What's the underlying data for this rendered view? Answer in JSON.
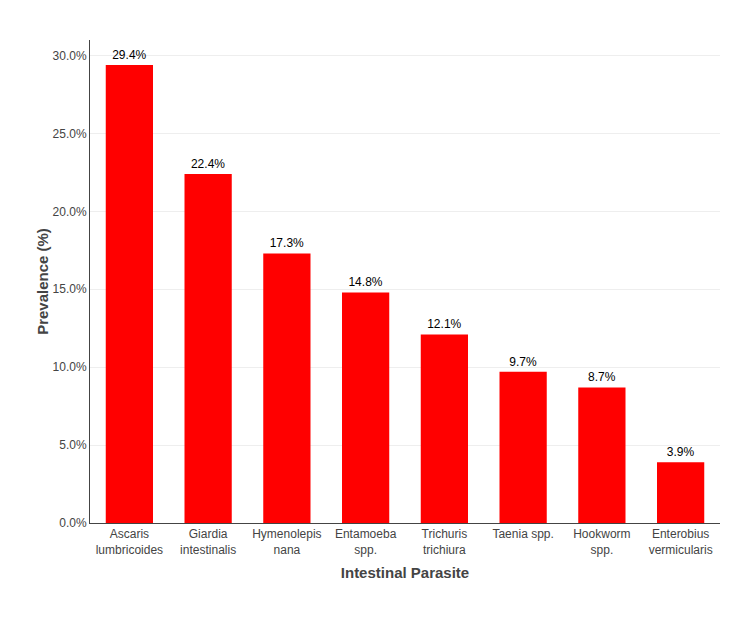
{
  "chart_data": {
    "type": "bar",
    "categories": [
      "Ascaris\nlumbricoides",
      "Giardia\nintestinalis",
      "Hymenolepis\nnana",
      "Entamoeba\nspp.",
      "Trichuris\ntrichiura",
      "Taenia spp.",
      "Hookworm\nspp.",
      "Enterobius\nvermicularis"
    ],
    "values": [
      29.4,
      22.4,
      17.3,
      14.8,
      12.1,
      9.7,
      8.7,
      3.9
    ],
    "value_labels": [
      "29.4%",
      "22.4%",
      "17.3%",
      "14.8%",
      "12.1%",
      "9.7%",
      "8.7%",
      "3.9%"
    ],
    "data_labels": true,
    "color": "#FF0000",
    "xlabel": "Intestinal Parasite",
    "ylabel": "Prevalence (%)",
    "ylim": [
      0,
      31
    ],
    "yticks": [
      {
        "value": 0,
        "label": "0.0%"
      },
      {
        "value": 5,
        "label": "5.0%"
      },
      {
        "value": 10,
        "label": "10.0%"
      },
      {
        "value": 15,
        "label": "15.0%"
      },
      {
        "value": 20,
        "label": "20.0%"
      },
      {
        "value": 25,
        "label": "25.0%"
      },
      {
        "value": 30,
        "label": "30.0%"
      }
    ],
    "grid": true
  }
}
